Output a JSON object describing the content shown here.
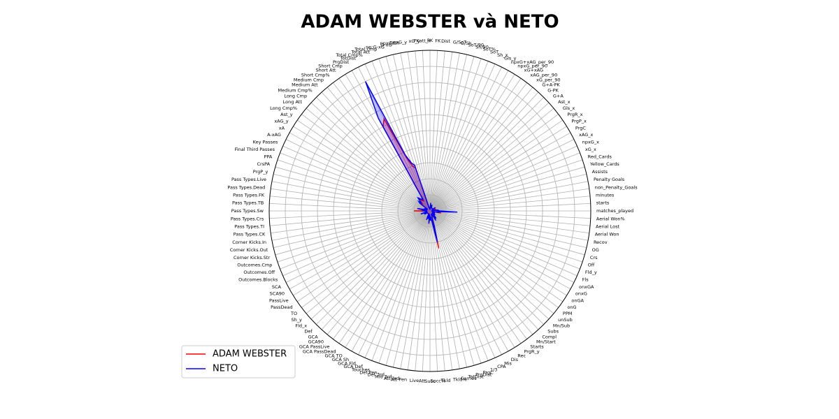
{
  "chart_data": {
    "type": "radar",
    "title": "ADAM WEBSTER và NETO",
    "categories": [
      "matches_played",
      "starts",
      "minutes",
      "non_Penalty_Goals",
      "Penalty Goals",
      "Assists",
      "Yellow_Cards",
      "Red_Cards",
      "xG_x",
      "npxG_x",
      "xAG_x",
      "PrgC",
      "PrgP_x",
      "PrgR_x",
      "Gls_x",
      "Ast_x",
      "G+A",
      "G-PK",
      "G+A-PK",
      "xG_per_90",
      "xAG_per_90",
      "xG+xAG",
      "npxG_per_90",
      "npxG+xAG_per_90",
      "Gls_y",
      "Sh_x",
      "SoT",
      "SoT%",
      "Sh/90",
      "SoT/90",
      "G/Sh",
      "G/SoT",
      "Dist",
      "FK",
      "PK",
      "PKatt_x",
      "xG_y",
      "npxG_y",
      "npxG/Sh",
      "G-xG",
      "np:G-xG",
      "Total Cmp",
      "Total Att",
      "Total Cmp%",
      "TotDist",
      "PrgDist",
      "Short Cmp",
      "Short Att",
      "Short Cmp%",
      "Medium Cmp",
      "Medium Att",
      "Medium Cmp%",
      "Long Cmp",
      "Long Att",
      "Long Cmp%",
      "Ast_y",
      "xAG_y",
      "xA",
      "A-xAG",
      "Key Passes",
      "Final Third Passes",
      "PPA",
      "CrsPA",
      "PrgP_y",
      "Pass Types.Live",
      "Pass Types.Dead",
      "Pass Types.FK",
      "Pass Types.TB",
      "Pass Types.Sw",
      "Pass Types.Crs",
      "Pass Types.TI",
      "Pass Types.CK",
      "Corner Kicks.In",
      "Corner Kicks.Out",
      "Corner Kicks.Str",
      "Outcomes.Cmp",
      "Outcomes.Off",
      "Outcomes.Blocks",
      "SCA",
      "SCA90",
      "PassLive",
      "PassDead",
      "TO",
      "Sh_y",
      "Fld_x",
      "Def",
      "GCA",
      "GCA90",
      "GCA PassLive",
      "GCA PassDead",
      "GCA TO",
      "GCA Sh",
      "GCA Fld",
      "GCA Def",
      "Touches",
      "Def Pen",
      "Def 3rd",
      "Mid 3rd",
      "Att 3rd",
      "Att Pen",
      "Live",
      "Att",
      "Succ",
      "Succ%",
      "Tkld",
      "Tkld%",
      "Carries",
      "TotDist",
      "PrgDist",
      "PrgC",
      "1/3",
      "CPA",
      "Mis",
      "Dis",
      "Rec",
      "PrgR_y",
      "Starts",
      "Mn/Start",
      "Compl",
      "Subs",
      "Mn/Sub",
      "unSub",
      "PPM",
      "onG",
      "onGA",
      "onxG",
      "onxGA",
      "Fls",
      "Fld_y",
      "Off",
      "Crs",
      "OG",
      "Recov",
      "Aerial Won",
      "Aerial Lost",
      "Aerial Won%"
    ],
    "series": [
      {
        "name": "ADAM WEBSTER",
        "color": "#ff0000",
        "values": [
          5,
          5,
          5,
          2,
          1,
          2,
          4,
          1,
          2,
          2,
          2,
          3,
          3,
          2,
          2,
          2,
          2,
          2,
          2,
          2,
          2,
          2,
          2,
          2,
          2,
          2,
          2,
          3,
          3,
          2,
          2,
          2,
          4,
          2,
          1,
          1,
          2,
          2,
          2,
          2,
          2,
          28,
          30,
          36,
          64,
          60,
          7,
          8,
          8,
          9,
          10,
          8,
          6,
          8,
          7,
          2,
          2,
          2,
          2,
          3,
          3,
          2,
          2,
          3,
          7,
          3,
          2,
          2,
          10,
          2,
          2,
          2,
          2,
          2,
          2,
          5,
          2,
          3,
          3,
          3,
          3,
          2,
          2,
          2,
          2,
          2,
          2,
          2,
          2,
          2,
          2,
          2,
          2,
          2,
          5,
          3,
          4,
          5,
          3,
          2,
          7,
          4,
          3,
          6,
          4,
          5,
          6,
          24,
          9,
          4,
          3,
          2,
          3,
          2,
          6,
          3,
          5,
          6,
          4,
          2,
          2,
          2,
          4,
          3,
          3,
          3,
          3,
          3,
          2,
          2,
          2,
          1,
          7,
          4,
          6,
          9
        ]
      },
      {
        "name": "NETO",
        "color": "#0000ff",
        "values": [
          6,
          5,
          5,
          2,
          1,
          2,
          3,
          1,
          2,
          2,
          2,
          3,
          4,
          2,
          2,
          2,
          2,
          2,
          2,
          2,
          2,
          2,
          2,
          2,
          2,
          3,
          2,
          4,
          3,
          2,
          2,
          2,
          5,
          2,
          1,
          1,
          2,
          2,
          2,
          2,
          2,
          30,
          32,
          38,
          90,
          66,
          8,
          9,
          9,
          10,
          11,
          9,
          7,
          9,
          8,
          2,
          2,
          2,
          2,
          3,
          4,
          2,
          2,
          4,
          8,
          3,
          2,
          2,
          5,
          2,
          2,
          2,
          2,
          2,
          2,
          6,
          2,
          3,
          4,
          3,
          4,
          2,
          2,
          2,
          2,
          2,
          2,
          2,
          2,
          2,
          2,
          2,
          2,
          2,
          6,
          3,
          4,
          5,
          3,
          2,
          8,
          4,
          3,
          6,
          4,
          5,
          7,
          20,
          10,
          4,
          3,
          2,
          3,
          2,
          7,
          3,
          5,
          6,
          4,
          2,
          2,
          2,
          4,
          3,
          3,
          3,
          3,
          3,
          2,
          2,
          2,
          1,
          6,
          4,
          5,
          17
        ]
      }
    ],
    "ylim": [
      0,
      100
    ],
    "yticks": [
      10,
      20,
      30,
      40,
      50,
      60,
      70,
      80,
      90
    ],
    "grid": true,
    "legend": "lower left"
  }
}
